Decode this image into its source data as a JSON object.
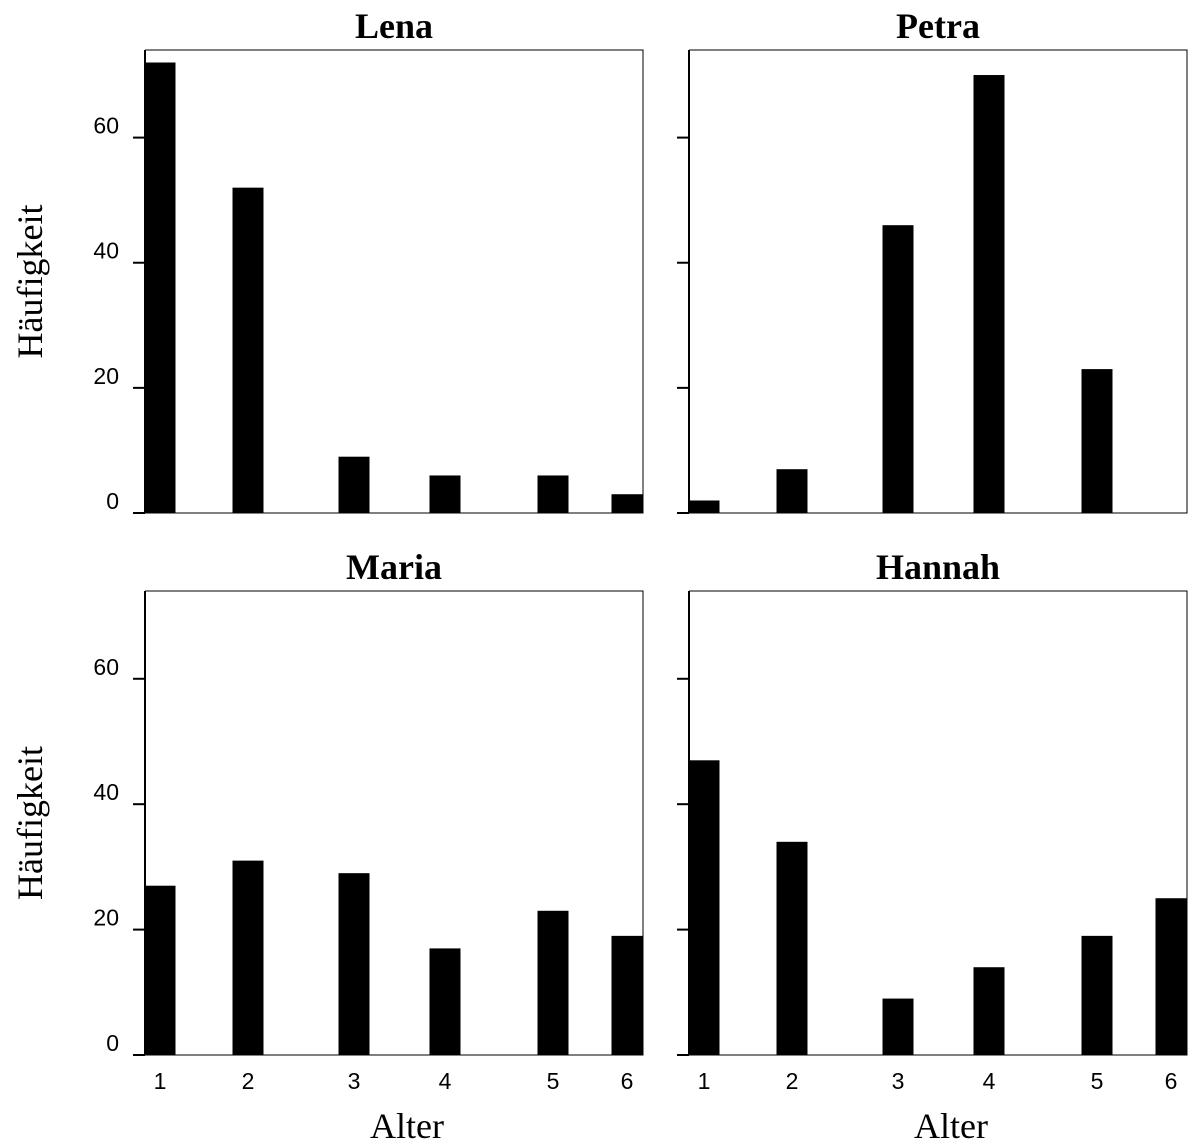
{
  "chart_data": {
    "type": "bar",
    "ylabel": "Häufigkeit",
    "xlabel": "Alter",
    "ylim": [
      0,
      74
    ],
    "yticks": [
      0,
      20,
      40,
      60
    ],
    "categories": [
      1,
      2,
      3,
      4,
      5,
      6
    ],
    "grid": false,
    "panels": [
      {
        "title": "Lena",
        "x": [
          1,
          2,
          3,
          4,
          5,
          6
        ],
        "values": [
          72,
          52,
          9,
          6,
          6,
          3
        ]
      },
      {
        "title": "Petra",
        "x": [
          1,
          2,
          3,
          4,
          5
        ],
        "values": [
          2,
          7,
          46,
          70,
          23
        ]
      },
      {
        "title": "Maria",
        "x": [
          1,
          2,
          3,
          4,
          5,
          6
        ],
        "values": [
          27,
          31,
          29,
          17,
          23,
          19
        ]
      },
      {
        "title": "Hannah",
        "x": [
          1,
          2,
          3,
          4,
          5,
          6
        ],
        "values": [
          47,
          34,
          9,
          14,
          19,
          25
        ]
      }
    ]
  }
}
